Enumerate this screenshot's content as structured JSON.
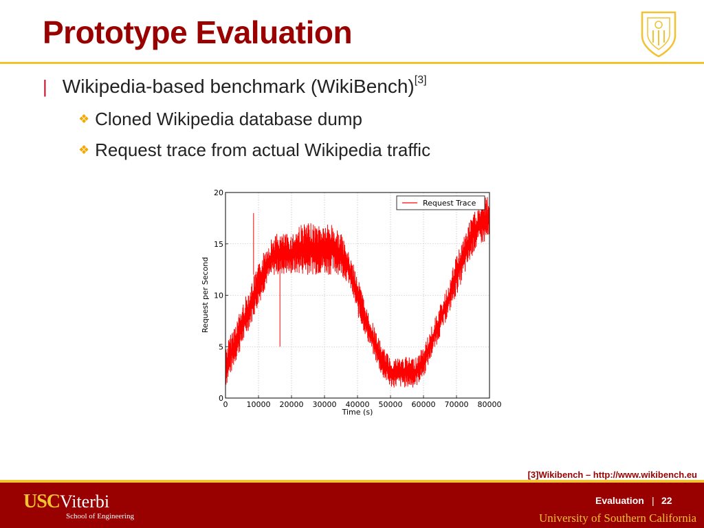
{
  "slide": {
    "title": "Prototype Evaluation",
    "bullets": {
      "main": {
        "marker": "|",
        "text": "Wikipedia-based benchmark (WikiBench)",
        "superscript": "[3]"
      },
      "sub": [
        {
          "marker": "❖",
          "text": "Cloned Wikipedia database dump"
        },
        {
          "marker": "❖",
          "text": "Request trace from actual Wikipedia traffic"
        }
      ]
    },
    "citation": "[3]Wikibench – http://www.wikibench.eu"
  },
  "footer": {
    "brand_usc": "USC",
    "brand_viterbi": "Viterbi",
    "school": "School of Engineering",
    "section": "Evaluation",
    "separator": "|",
    "page": "22",
    "university": "University of Southern California"
  },
  "colors": {
    "cardinal": "#990000",
    "gold": "#f2c230",
    "trace": "#ff0000"
  },
  "chart_data": {
    "type": "line",
    "xlabel": "Time (s)",
    "ylabel": "Request per Second",
    "xlim": [
      0,
      80000
    ],
    "ylim": [
      0,
      20
    ],
    "xticks": [
      0,
      10000,
      20000,
      30000,
      40000,
      50000,
      60000,
      70000,
      80000
    ],
    "yticks": [
      0,
      5,
      10,
      15,
      20
    ],
    "grid": true,
    "legend_position": "top-right",
    "series": [
      {
        "name": "Request Trace",
        "color": "#ff0000",
        "envelope": {
          "x": [
            0,
            2500,
            5000,
            7500,
            10000,
            12500,
            15000,
            17500,
            20000,
            22500,
            25000,
            27500,
            30000,
            32500,
            35000,
            37500,
            40000,
            42500,
            45000,
            47500,
            50000,
            52500,
            55000,
            57500,
            60000,
            62500,
            65000,
            67500,
            70000,
            72500,
            75000,
            77500,
            80000
          ],
          "low": [
            1,
            3,
            5,
            7,
            9,
            11,
            12,
            12,
            12,
            12,
            12,
            12,
            12,
            12,
            12,
            11,
            8,
            6,
            4,
            2,
            1,
            1,
            1,
            1,
            2,
            4,
            6,
            8,
            10,
            12,
            14,
            15,
            15
          ],
          "high": [
            5,
            7,
            9,
            11,
            13,
            15,
            16,
            16,
            16,
            17,
            17,
            17,
            17,
            17,
            16,
            14,
            12,
            9,
            7,
            5,
            4,
            4,
            4,
            4,
            5,
            7,
            9,
            11,
            14,
            16,
            18,
            19,
            20
          ]
        },
        "spikes": [
          {
            "x": 8500,
            "low": 12,
            "high": 18
          },
          {
            "x": 16500,
            "low": 5,
            "high": 13
          }
        ]
      }
    ]
  }
}
